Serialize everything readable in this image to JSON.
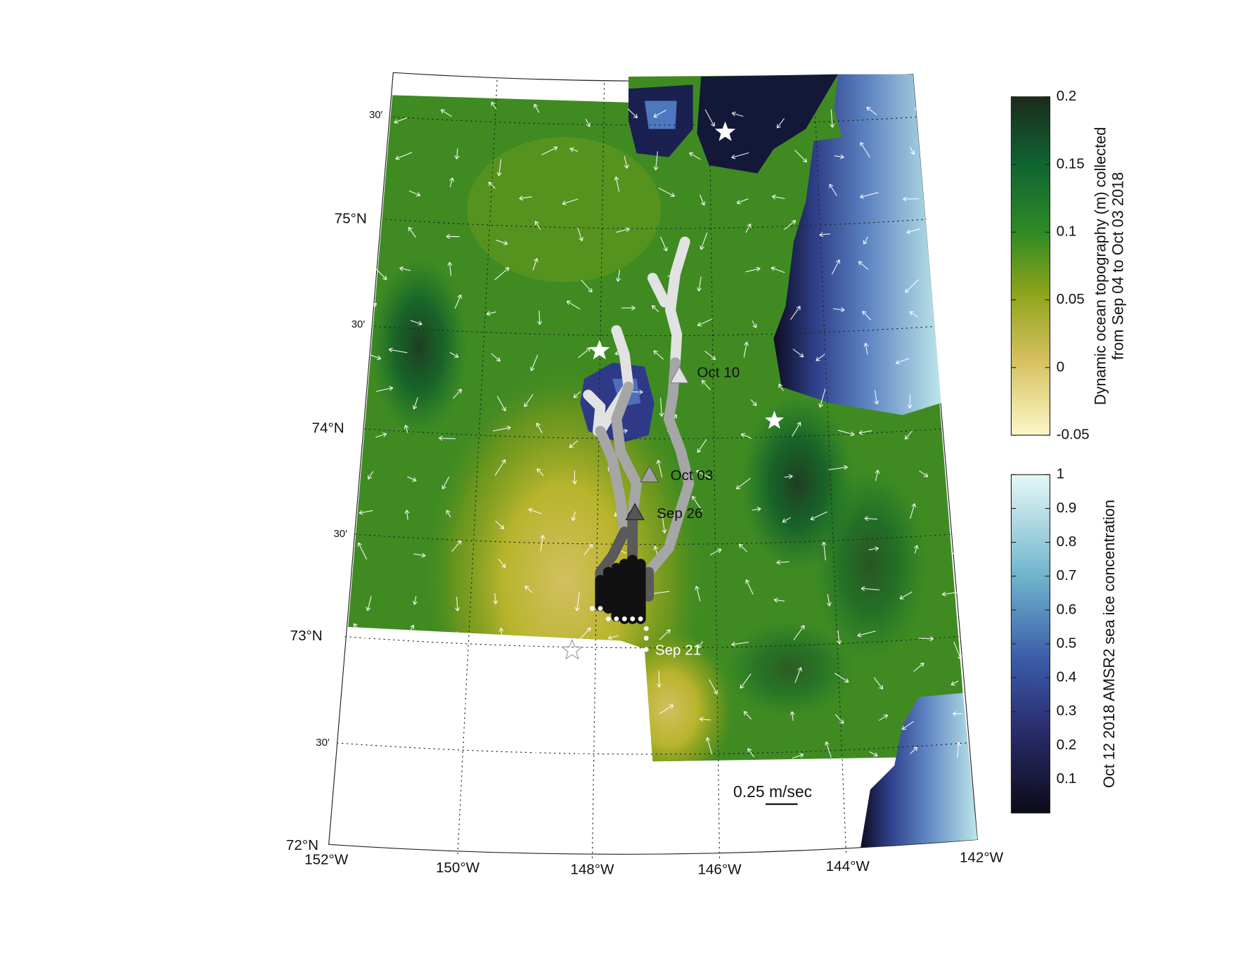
{
  "map": {
    "lat_labels": [
      "72°N",
      "30′",
      "73°N",
      "30′",
      "74°N",
      "30′",
      "75°N",
      "30′"
    ],
    "lon_labels": [
      "152°W",
      "150°W",
      "148°W",
      "146°W",
      "144°W",
      "142°W"
    ],
    "annotations": [
      "Oct 10",
      "Oct 03",
      "Sep 26",
      "Sep 21"
    ],
    "scale_label": "0.25 m/sec"
  },
  "colorbars": [
    {
      "title": [
        "Dynamic ocean topography (m) collected",
        "from Sep 04 to Oct 03 2018"
      ],
      "lim": [
        -0.05,
        0.2
      ],
      "ticks": [
        -0.05,
        0,
        0.05,
        0.1,
        0.15,
        0.2
      ]
    },
    {
      "title": [
        "Oct 12 2018 AMSR2 sea ice concentration"
      ],
      "lim": [
        0,
        1
      ],
      "ticks": [
        0.1,
        0.2,
        0.3,
        0.4,
        0.5,
        0.6,
        0.7,
        0.8,
        0.9,
        1
      ]
    }
  ]
}
